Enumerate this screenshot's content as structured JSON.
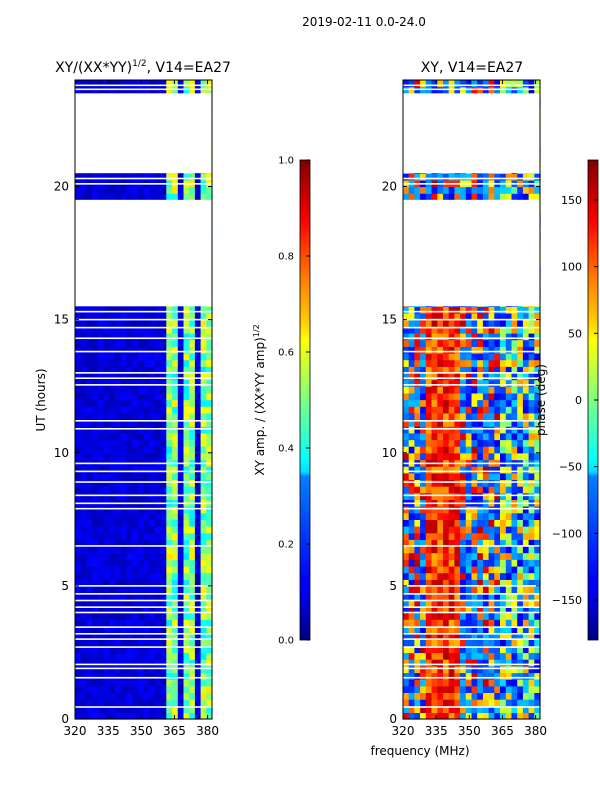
{
  "figure": {
    "suptitle": "2019-02-11 0.0-24.0",
    "xlabel": "frequency (MHz)"
  },
  "chart_data": [
    {
      "type": "heatmap",
      "title_main": "XY/(XX*YY)",
      "title_sup": "1/2",
      "title_rest": ", V14=EA27",
      "xlabel": "",
      "ylabel": "UT (hours)",
      "xlim": [
        320,
        382
      ],
      "ylim": [
        0,
        24
      ],
      "xticks": [
        "320",
        "335",
        "350",
        "365",
        "380"
      ],
      "xtick_values": [
        320,
        335,
        350,
        365,
        380
      ],
      "yticks": [
        "0",
        "5",
        "10",
        "15",
        "20"
      ],
      "ytick_values": [
        0,
        5,
        10,
        15,
        20
      ],
      "colorbar": {
        "label_main": "XY amp. / (XX*YY amp)",
        "label_sup": "1/2",
        "vmin": 0.0,
        "vmax": 1.0,
        "ticks": [
          "0.0",
          "0.2",
          "0.4",
          "0.6",
          "0.8",
          "1.0"
        ],
        "tick_values": [
          0.0,
          0.2,
          0.4,
          0.6,
          0.8,
          1.0
        ]
      },
      "blank_hours": [
        [
          15.5,
          19.5
        ],
        [
          20.5,
          23.5
        ]
      ],
      "bright_bands_mhz": [
        [
          362,
          366
        ],
        [
          370,
          374
        ],
        [
          377,
          380
        ]
      ],
      "background_value": 0.05
    },
    {
      "type": "heatmap",
      "title_main": "XY, V14=EA27",
      "xlabel": "",
      "ylabel": "",
      "xlim": [
        320,
        382
      ],
      "ylim": [
        0,
        24
      ],
      "xticks": [
        "320",
        "335",
        "350",
        "365",
        "380"
      ],
      "xtick_values": [
        320,
        335,
        350,
        365,
        380
      ],
      "yticks": [
        "0",
        "5",
        "10",
        "15",
        "20"
      ],
      "ytick_values": [
        0,
        5,
        10,
        15,
        20
      ],
      "colorbar": {
        "label_main": "phase (deg)",
        "vmin": -180,
        "vmax": 180,
        "ticks": [
          "−150",
          "−100",
          "−50",
          "0",
          "50",
          "100",
          "150"
        ],
        "tick_values": [
          -150,
          -100,
          -50,
          0,
          50,
          100,
          150
        ]
      },
      "blank_hours": [
        [
          15.5,
          19.5
        ],
        [
          20.5,
          23.5
        ]
      ]
    }
  ]
}
